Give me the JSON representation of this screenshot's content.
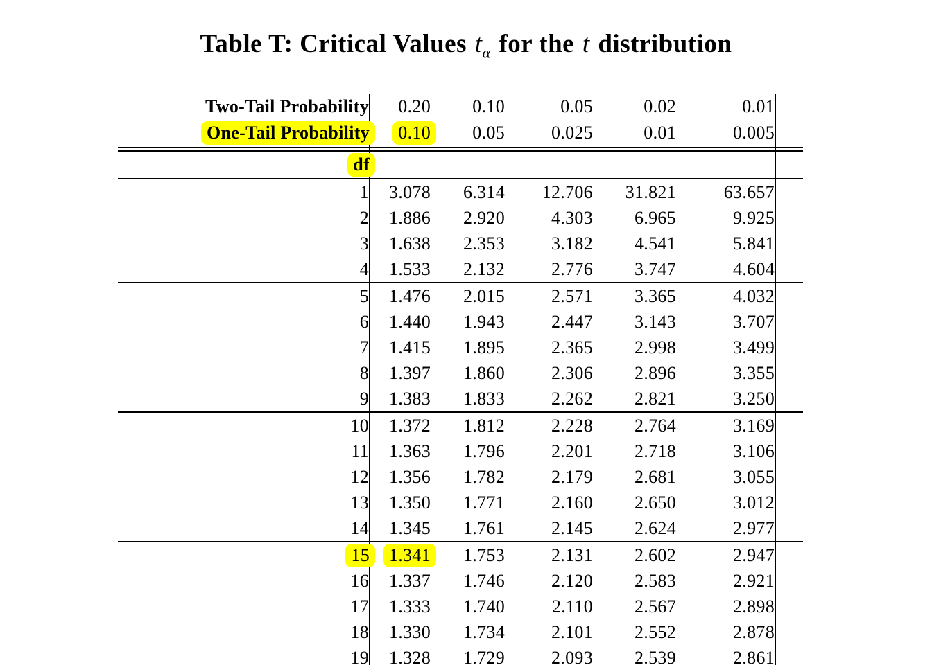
{
  "title": {
    "prefix": "Table T: Critical Values",
    "t_symbol_1": "t",
    "alpha_subscript": "α",
    "middle": "for the",
    "t_symbol_2": "t",
    "suffix": "distribution"
  },
  "highlight_color": "#ffff00",
  "table": {
    "header": {
      "two_tail": {
        "label": "Two-Tail Probability",
        "values": [
          "0.20",
          "0.10",
          "0.05",
          "0.02",
          "0.01"
        ]
      },
      "one_tail": {
        "label": "One-Tail Probability",
        "label_highlighted": true,
        "values": [
          "0.10",
          "0.05",
          "0.025",
          "0.01",
          "0.005"
        ],
        "highlighted_value_index": 0
      },
      "df_label": "df",
      "df_label_highlighted": true
    },
    "rows": [
      {
        "df": "1",
        "values": [
          "3.078",
          "6.314",
          "12.706",
          "31.821",
          "63.657"
        ]
      },
      {
        "df": "2",
        "values": [
          "1.886",
          "2.920",
          "4.303",
          "6.965",
          "9.925"
        ]
      },
      {
        "df": "3",
        "values": [
          "1.638",
          "2.353",
          "3.182",
          "4.541",
          "5.841"
        ]
      },
      {
        "df": "4",
        "values": [
          "1.533",
          "2.132",
          "2.776",
          "3.747",
          "4.604"
        ],
        "rule_after": true
      },
      {
        "df": "5",
        "values": [
          "1.476",
          "2.015",
          "2.571",
          "3.365",
          "4.032"
        ]
      },
      {
        "df": "6",
        "values": [
          "1.440",
          "1.943",
          "2.447",
          "3.143",
          "3.707"
        ]
      },
      {
        "df": "7",
        "values": [
          "1.415",
          "1.895",
          "2.365",
          "2.998",
          "3.499"
        ]
      },
      {
        "df": "8",
        "values": [
          "1.397",
          "1.860",
          "2.306",
          "2.896",
          "3.355"
        ]
      },
      {
        "df": "9",
        "values": [
          "1.383",
          "1.833",
          "2.262",
          "2.821",
          "3.250"
        ],
        "rule_after": true
      },
      {
        "df": "10",
        "values": [
          "1.372",
          "1.812",
          "2.228",
          "2.764",
          "3.169"
        ]
      },
      {
        "df": "11",
        "values": [
          "1.363",
          "1.796",
          "2.201",
          "2.718",
          "3.106"
        ]
      },
      {
        "df": "12",
        "values": [
          "1.356",
          "1.782",
          "2.179",
          "2.681",
          "3.055"
        ]
      },
      {
        "df": "13",
        "values": [
          "1.350",
          "1.771",
          "2.160",
          "2.650",
          "3.012"
        ]
      },
      {
        "df": "14",
        "values": [
          "1.345",
          "1.761",
          "2.145",
          "2.624",
          "2.977"
        ],
        "rule_after": true
      },
      {
        "df": "15",
        "values": [
          "1.341",
          "1.753",
          "2.131",
          "2.602",
          "2.947"
        ],
        "df_highlighted": true,
        "value_highlight_index": 0
      },
      {
        "df": "16",
        "values": [
          "1.337",
          "1.746",
          "2.120",
          "2.583",
          "2.921"
        ]
      },
      {
        "df": "17",
        "values": [
          "1.333",
          "1.740",
          "2.110",
          "2.567",
          "2.898"
        ]
      },
      {
        "df": "18",
        "values": [
          "1.330",
          "1.734",
          "2.101",
          "2.552",
          "2.878"
        ]
      },
      {
        "df": "19",
        "values": [
          "1.328",
          "1.729",
          "2.093",
          "2.539",
          "2.861"
        ]
      }
    ]
  }
}
